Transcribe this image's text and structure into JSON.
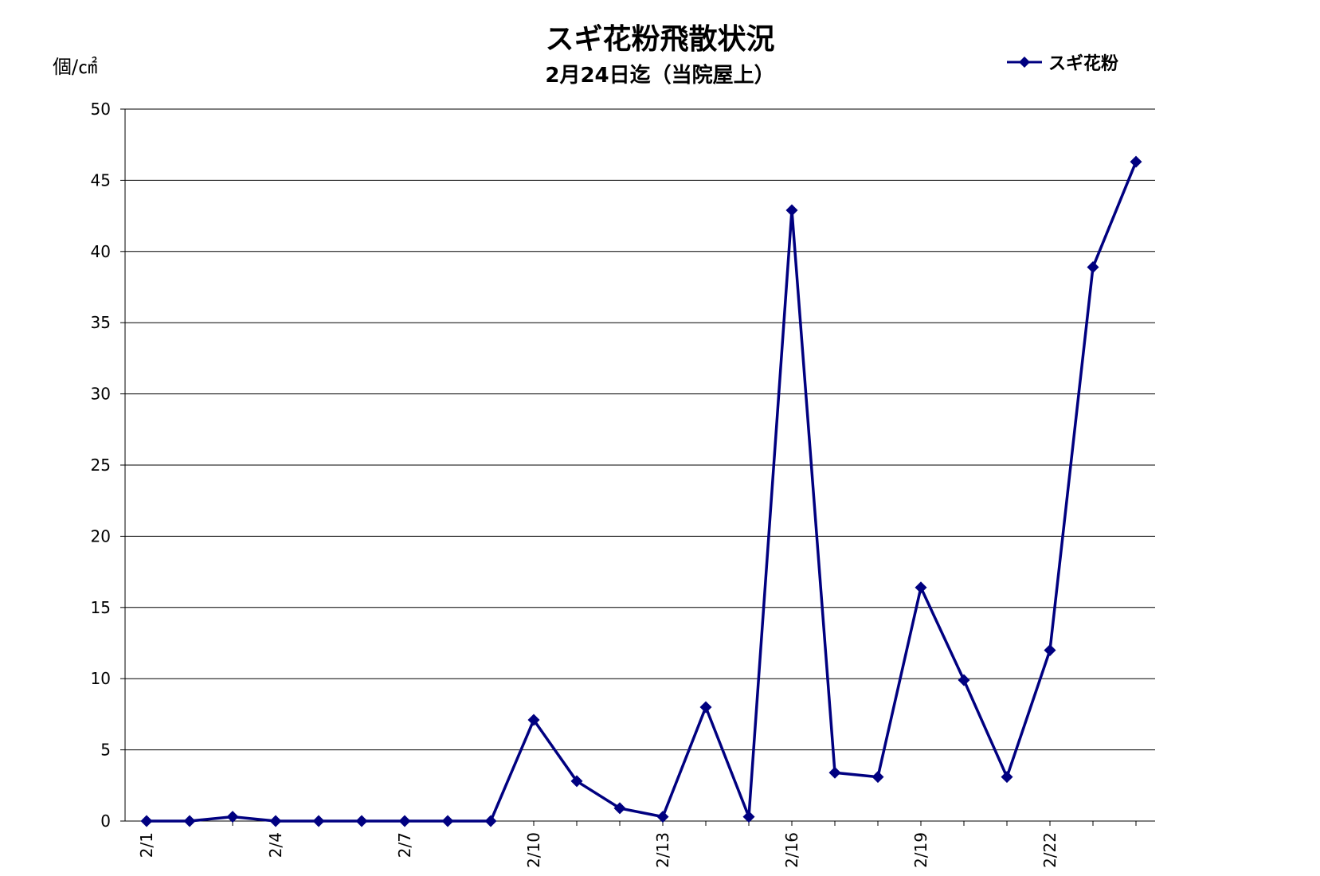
{
  "chart_data": {
    "type": "line",
    "title": "スギ花粉飛散状況",
    "subtitle": "2月24日迄（当院屋上）",
    "ylabel": "個/㎠",
    "xlabel": "",
    "ylim": [
      0,
      50
    ],
    "yticks": [
      0,
      5,
      10,
      15,
      20,
      25,
      30,
      35,
      40,
      45,
      50
    ],
    "grid": true,
    "legend_position": "top-right",
    "line_color": "#000080",
    "x": [
      "2/1",
      "2/2",
      "2/3",
      "2/4",
      "2/5",
      "2/6",
      "2/7",
      "2/8",
      "2/9",
      "2/10",
      "2/11",
      "2/12",
      "2/13",
      "2/14",
      "2/15",
      "2/16",
      "2/17",
      "2/18",
      "2/19",
      "2/20",
      "2/21",
      "2/22",
      "2/23",
      "2/24"
    ],
    "x_tick_labels": [
      "2/1",
      "2/4",
      "2/7",
      "2/10",
      "2/13",
      "2/16",
      "2/19",
      "2/22"
    ],
    "series": [
      {
        "name": "スギ花粉",
        "marker": "diamond",
        "values": [
          0,
          0,
          0.3,
          0,
          0,
          0,
          0,
          0,
          0,
          7.1,
          2.8,
          0.9,
          0.3,
          8.0,
          0.3,
          42.9,
          3.4,
          3.1,
          16.4,
          9.9,
          3.1,
          12.0,
          38.9,
          46.3
        ]
      }
    ]
  }
}
